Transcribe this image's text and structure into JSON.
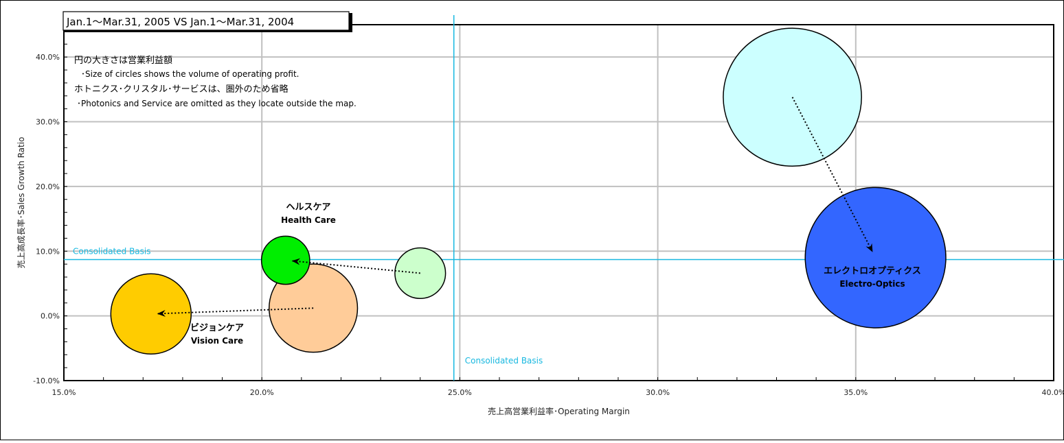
{
  "chart_data": {
    "type": "bubble",
    "title": "Jan.1～Mar.31, 2005 VS Jan.1～Mar.31, 2004",
    "xlabel": "売上高営業利益率･Operating Margin",
    "ylabel": "売上高成長率･Sales Growth Ratio",
    "xlim": [
      15.0,
      40.0
    ],
    "ylim": [
      -10.0,
      45.0
    ],
    "x_ticks": [
      15.0,
      20.0,
      25.0,
      30.0,
      35.0,
      40.0
    ],
    "x_tick_labels": [
      "15.0%",
      "20.0%",
      "25.0%",
      "30.0%",
      "35.0%",
      "40.0%"
    ],
    "y_ticks": [
      -10.0,
      0.0,
      10.0,
      20.0,
      30.0,
      40.0
    ],
    "y_tick_labels": [
      "-10.0%",
      "0.0%",
      "10.0%",
      "20.0%",
      "30.0%",
      "40.0%"
    ],
    "grid": true,
    "reference_lines": {
      "x": 24.85,
      "y": 8.7,
      "x_label": "Consolidated Basis",
      "y_label": "Consolidated Basis",
      "color": "#18b8e0"
    },
    "notes": [
      "円の大きさは営業利益額",
      "･Size of circles shows the volume of operating profit.",
      "ホトニクス･クリスタル･サービスは、圏外のため省略",
      "･Photonics and Service are omitted as  they locate outside the map."
    ],
    "series": [
      {
        "name": "ビジョンケア Vision Care",
        "label_ja": "ビジョンケア",
        "label_en": "Vision Care",
        "previous": {
          "x": 21.3,
          "y": 1.2,
          "size": 11
        },
        "current": {
          "x": 17.2,
          "y": 0.3,
          "size": 10
        },
        "color_previous": "#ffcc99",
        "color_current": "#ffcc00"
      },
      {
        "name": "ヘルスケア Health Care",
        "label_ja": "ヘルスケア",
        "label_en": "Health Care",
        "previous": {
          "x": 24.0,
          "y": 6.6,
          "size": 6.3
        },
        "current": {
          "x": 20.6,
          "y": 8.6,
          "size": 6
        },
        "color_previous": "#ccffcc",
        "color_current": "#00ee00"
      },
      {
        "name": "エレクトロオプティクス Electro-Optics",
        "label_ja": "エレクトロオプティクス",
        "label_en": "Electro-Optics",
        "previous": {
          "x": 33.4,
          "y": 33.8,
          "size": 17.2
        },
        "current": {
          "x": 35.5,
          "y": 9.0,
          "size": 17.5
        },
        "color_previous": "#ccffff",
        "color_current": "#3366ff"
      }
    ]
  }
}
